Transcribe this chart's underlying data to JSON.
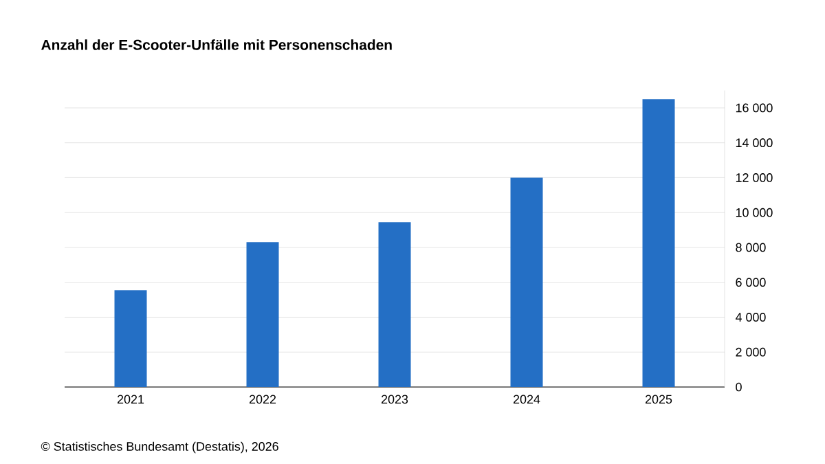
{
  "chart_data": {
    "type": "bar",
    "title": "Anzahl der E-Scooter-Unfälle mit Personenschaden",
    "categories": [
      "2021",
      "2022",
      "2023",
      "2024",
      "2025"
    ],
    "values": [
      5550,
      8300,
      9450,
      12000,
      16500
    ],
    "color": "#246fc5",
    "ylim": [
      0,
      17000
    ],
    "yticks": [
      0,
      {
        "value": 2000,
        "label": "2 000"
      },
      {
        "value": 4000,
        "label": "4 000"
      },
      {
        "value": 6000,
        "label": "6 000"
      },
      {
        "value": 8000,
        "label": "8 000"
      },
      {
        "value": 10000,
        "label": "10 000"
      },
      {
        "value": 12000,
        "label": "12 000"
      },
      {
        "value": 14000,
        "label": "14 000"
      },
      {
        "value": 16000,
        "label": "16 000"
      }
    ],
    "grid": "y",
    "annotations": [
      "© Statistisches Bundesamt (Destatis), 2026"
    ]
  }
}
